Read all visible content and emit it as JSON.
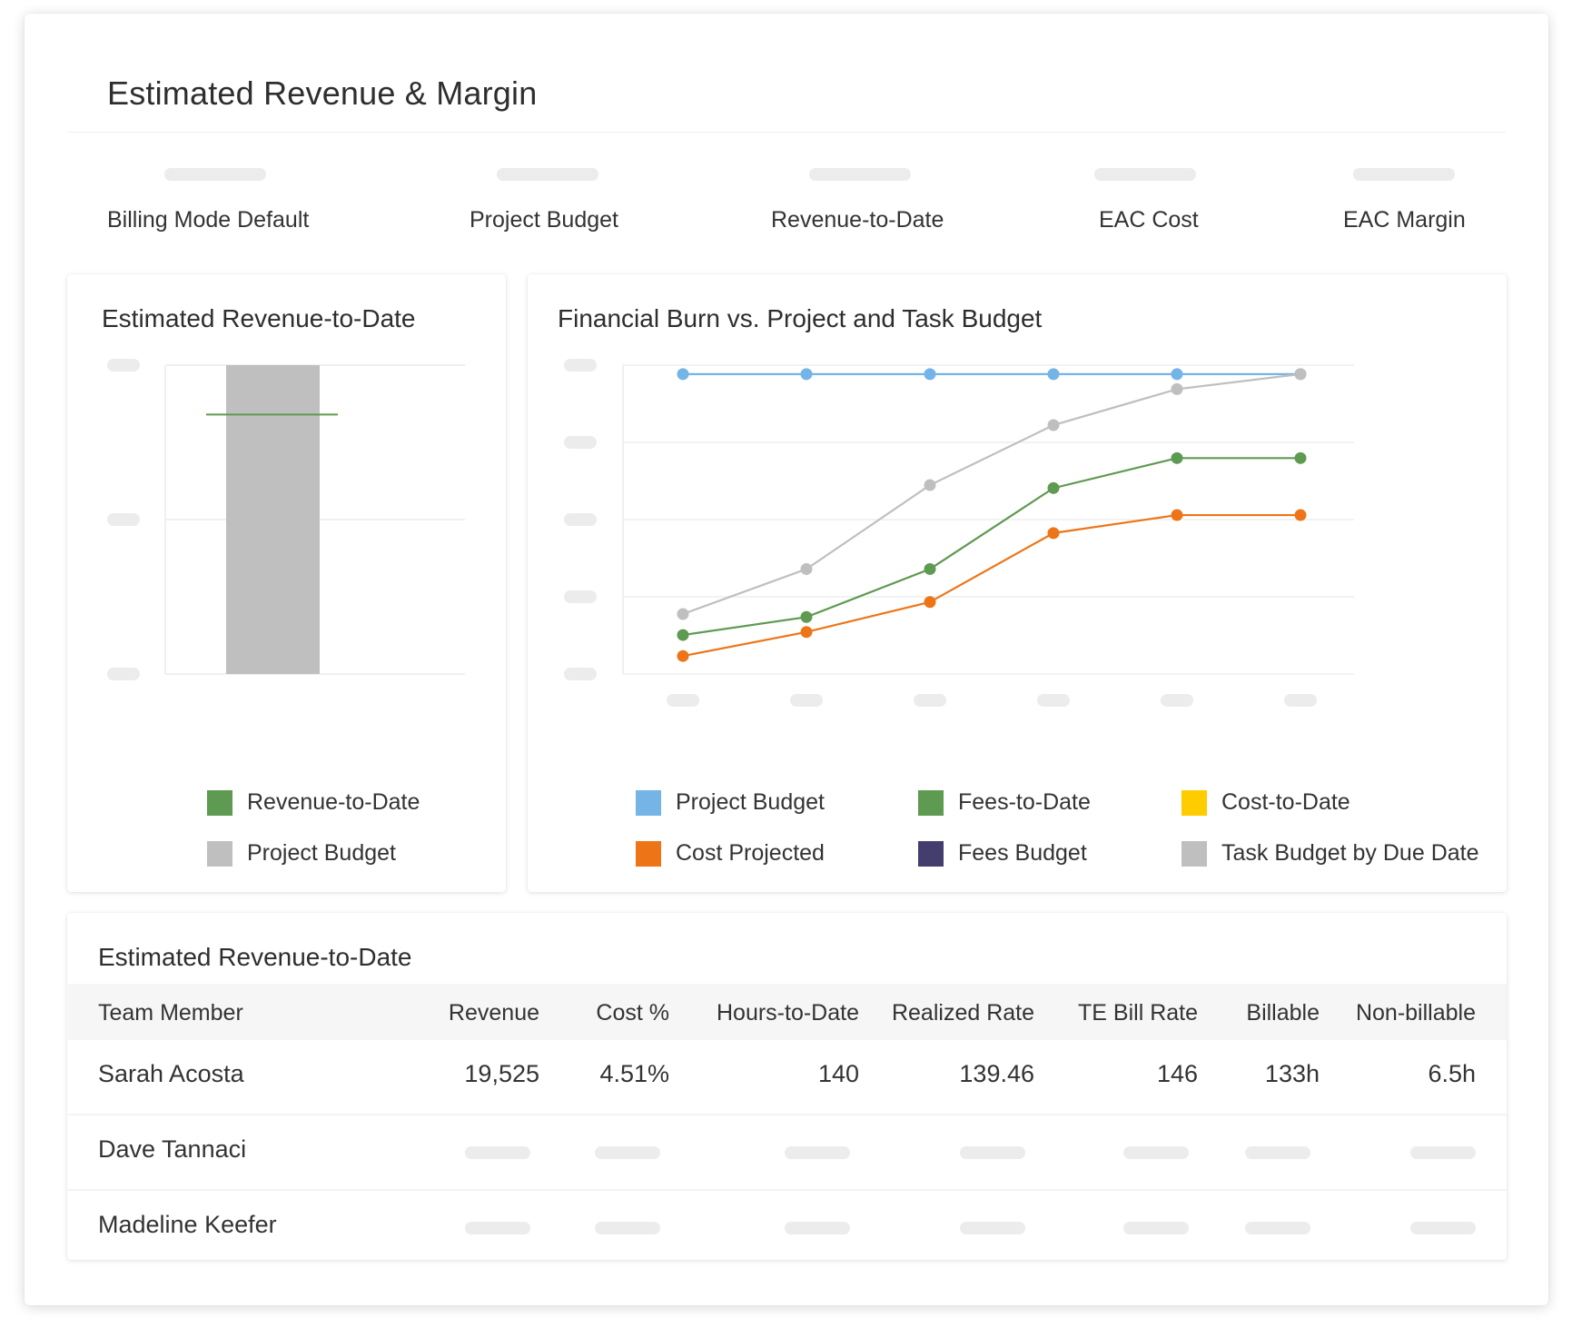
{
  "page": {
    "title": "Estimated Revenue & Margin"
  },
  "kpis": [
    {
      "label": "Billing Mode Default"
    },
    {
      "label": "Project Budget"
    },
    {
      "label": "Revenue-to-Date"
    },
    {
      "label": "EAC Cost"
    },
    {
      "label": "EAC Margin"
    }
  ],
  "revenue_panel": {
    "title": "Estimated Revenue-to-Date",
    "legend": [
      {
        "label": "Revenue-to-Date",
        "color": "#5e9a51"
      },
      {
        "label": "Project Budget",
        "color": "#bfbfbf"
      }
    ]
  },
  "burn_panel": {
    "title": "Financial Burn vs. Project and Task Budget",
    "legend": [
      {
        "label": "Project Budget",
        "color": "#74b4e6"
      },
      {
        "label": "Fees-to-Date",
        "color": "#5e9a51"
      },
      {
        "label": "Cost-to-Date",
        "color": "#ffcc00"
      },
      {
        "label": "Cost Projected",
        "color": "#ed7518"
      },
      {
        "label": "Fees Budget",
        "color": "#433e6e"
      },
      {
        "label": "Task Budget by Due Date",
        "color": "#bfbfbf"
      }
    ]
  },
  "chart_data": [
    {
      "type": "bar",
      "title": "Estimated Revenue-to-Date",
      "categories": [
        ""
      ],
      "series": [
        {
          "name": "Project Budget",
          "values": [
            100
          ],
          "color": "#bfbfbf"
        },
        {
          "name": "Revenue-to-Date",
          "values": [
            84
          ],
          "color": "#5e9a51",
          "style": "marker-line"
        }
      ],
      "ylim": [
        0,
        100
      ],
      "grid": true,
      "legend_position": "bottom",
      "axis_labels_visible": false
    },
    {
      "type": "line",
      "title": "Financial Burn vs. Project and Task Budget",
      "x": [
        1,
        2,
        3,
        4,
        5,
        6
      ],
      "series": [
        {
          "name": "Project Budget",
          "values": [
            100,
            100,
            100,
            100,
            100,
            100
          ],
          "color": "#74b4e6"
        },
        {
          "name": "Task Budget by Due Date",
          "values": [
            20,
            35,
            63,
            83,
            95,
            100
          ],
          "color": "#bfbfbf"
        },
        {
          "name": "Fees-to-Date",
          "values": [
            13,
            19,
            35,
            62,
            72,
            72
          ],
          "color": "#5e9a51"
        },
        {
          "name": "Cost Projected",
          "values": [
            6,
            14,
            24,
            47,
            53,
            53
          ],
          "color": "#ed7518"
        }
      ],
      "ylim": [
        0,
        100
      ],
      "grid": true,
      "legend_position": "bottom",
      "axis_labels_visible": false
    }
  ],
  "table": {
    "title": "Estimated Revenue-to-Date",
    "columns": [
      "Team Member",
      "Revenue",
      "Cost %",
      "Hours-to-Date",
      "Realized Rate",
      "TE Bill Rate",
      "Billable",
      "Non-billable"
    ],
    "rows": [
      {
        "member": "Sarah Acosta",
        "cells": [
          "19,525",
          "4.51%",
          "140",
          "139.46",
          "146",
          "133h",
          "6.5h"
        ]
      },
      {
        "member": "Dave Tannaci",
        "cells": []
      },
      {
        "member": "Madeline Keefer",
        "cells": []
      }
    ]
  }
}
